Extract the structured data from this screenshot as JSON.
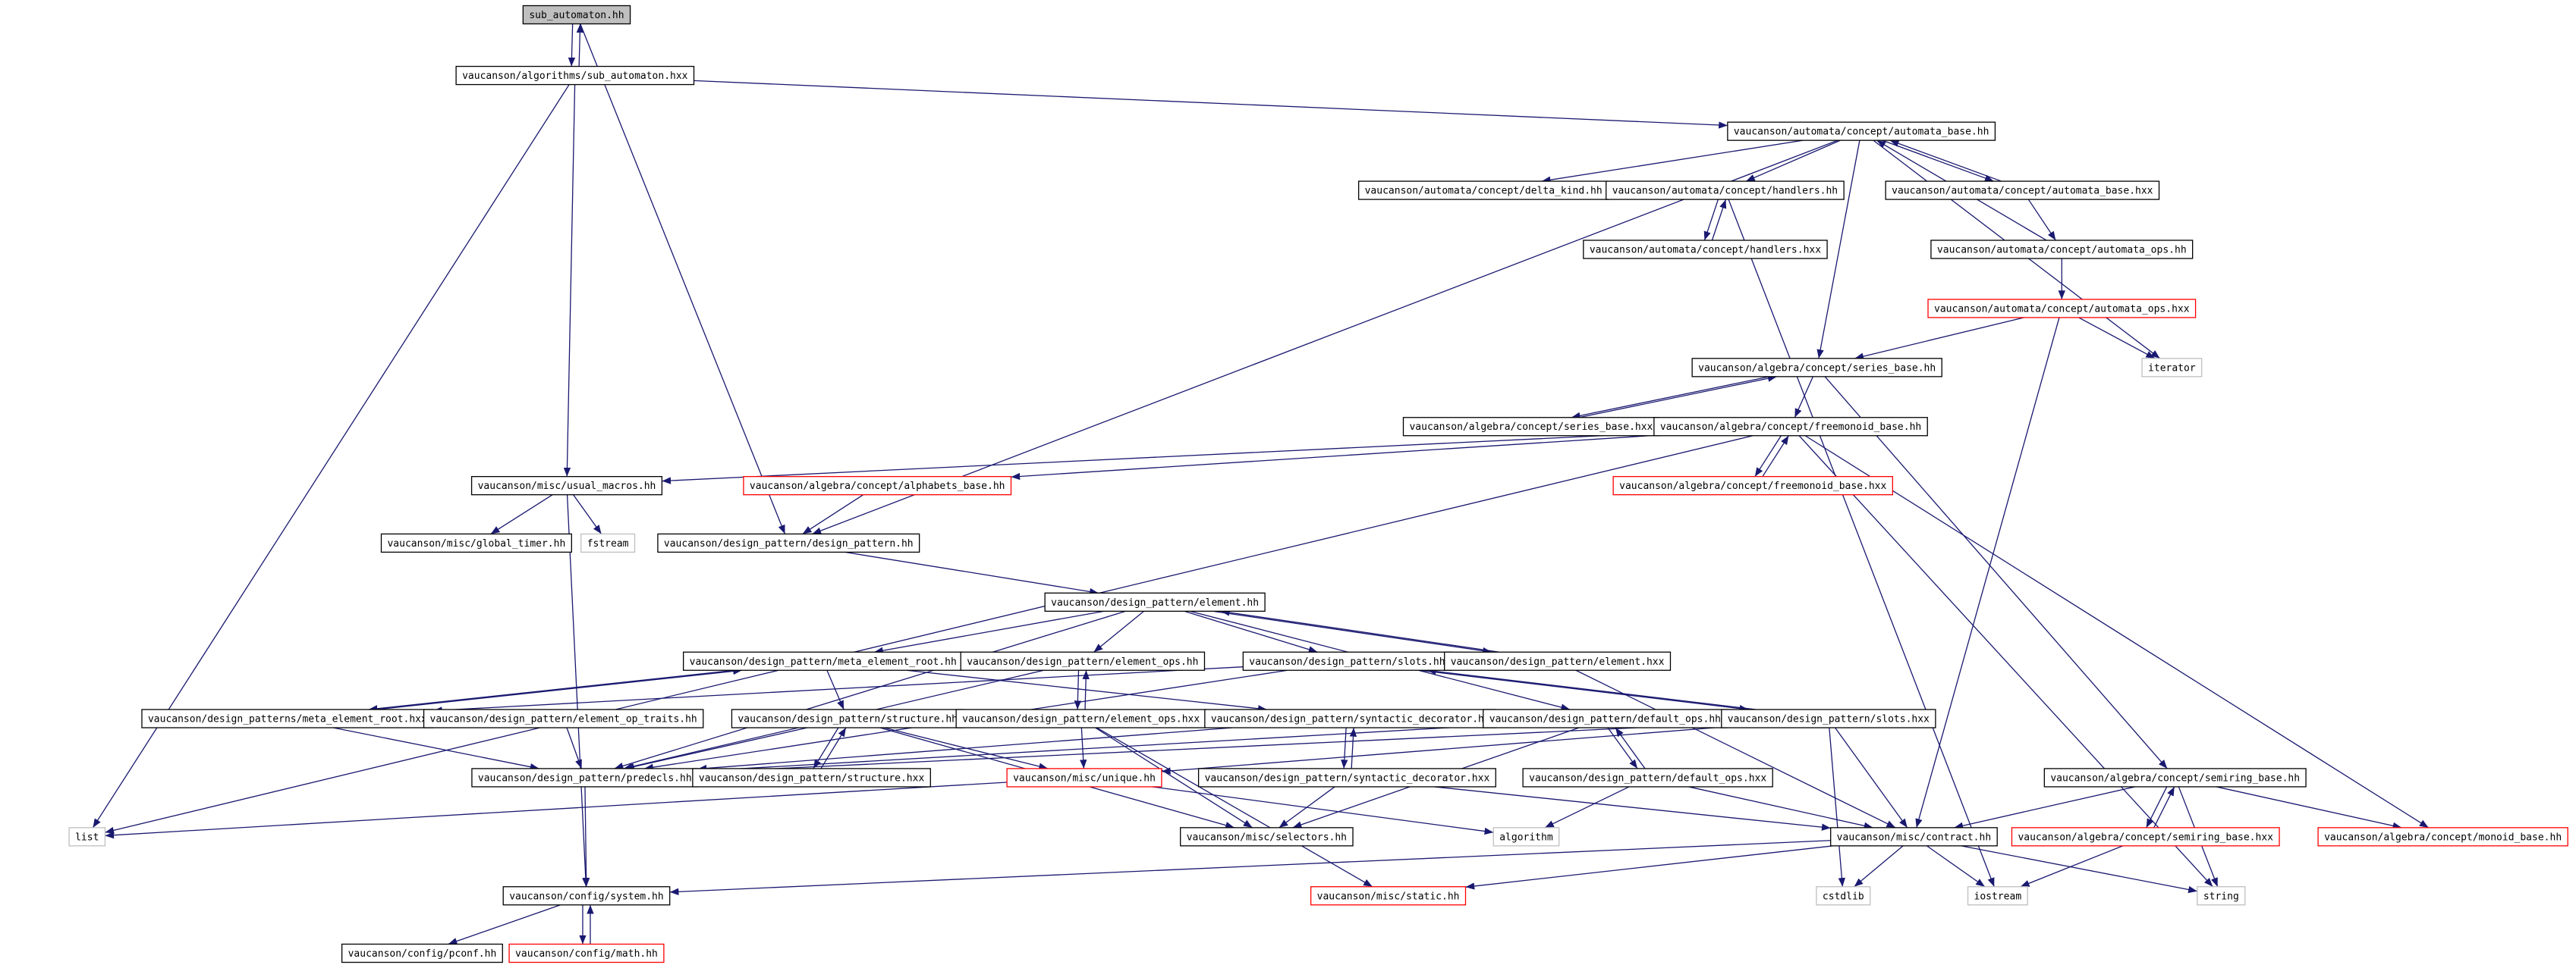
{
  "nodes": [
    {
      "label": "sub_automaton.hh"
    },
    {
      "label": "vaucanson/algorithms/sub_automaton.hxx"
    },
    {
      "label": "vaucanson/automata/concept/automata_base.hh"
    },
    {
      "label": "vaucanson/automata/concept/delta_kind.hh"
    },
    {
      "label": "vaucanson/automata/concept/handlers.hh"
    },
    {
      "label": "vaucanson/automata/concept/automata_base.hxx"
    },
    {
      "label": "vaucanson/automata/concept/handlers.hxx"
    },
    {
      "label": "vaucanson/automata/concept/automata_ops.hh"
    },
    {
      "label": "vaucanson/automata/concept/automata_ops.hxx"
    },
    {
      "label": "vaucanson/algebra/concept/series_base.hh"
    },
    {
      "label": "iterator"
    },
    {
      "label": "vaucanson/algebra/concept/series_base.hxx"
    },
    {
      "label": "vaucanson/algebra/concept/freemonoid_base.hh"
    },
    {
      "label": "vaucanson/misc/usual_macros.hh"
    },
    {
      "label": "vaucanson/algebra/concept/alphabets_base.hh"
    },
    {
      "label": "vaucanson/algebra/concept/freemonoid_base.hxx"
    },
    {
      "label": "vaucanson/misc/global_timer.hh"
    },
    {
      "label": "fstream"
    },
    {
      "label": "vaucanson/design_pattern/design_pattern.hh"
    },
    {
      "label": "vaucanson/design_pattern/element.hh"
    },
    {
      "label": "vaucanson/design_pattern/meta_element_root.hh"
    },
    {
      "label": "vaucanson/design_pattern/element_ops.hh"
    },
    {
      "label": "vaucanson/design_pattern/slots.hh"
    },
    {
      "label": "vaucanson/design_pattern/element.hxx"
    },
    {
      "label": "vaucanson/design_patterns/meta_element_root.hxx"
    },
    {
      "label": "vaucanson/design_pattern/element_op_traits.hh"
    },
    {
      "label": "vaucanson/design_pattern/structure.hh"
    },
    {
      "label": "vaucanson/design_pattern/element_ops.hxx"
    },
    {
      "label": "vaucanson/design_pattern/syntactic_decorator.hh"
    },
    {
      "label": "vaucanson/design_pattern/default_ops.hh"
    },
    {
      "label": "vaucanson/design_pattern/slots.hxx"
    },
    {
      "label": "vaucanson/design_pattern/predecls.hh"
    },
    {
      "label": "vaucanson/design_pattern/structure.hxx"
    },
    {
      "label": "vaucanson/misc/unique.hh"
    },
    {
      "label": "vaucanson/design_pattern/syntactic_decorator.hxx"
    },
    {
      "label": "vaucanson/design_pattern/default_ops.hxx"
    },
    {
      "label": "vaucanson/algebra/concept/semiring_base.hh"
    },
    {
      "label": "list"
    },
    {
      "label": "vaucanson/misc/selectors.hh"
    },
    {
      "label": "algorithm"
    },
    {
      "label": "vaucanson/misc/contract.hh"
    },
    {
      "label": "vaucanson/algebra/concept/semiring_base.hxx"
    },
    {
      "label": "vaucanson/algebra/concept/monoid_base.hh"
    },
    {
      "label": "vaucanson/config/system.hh"
    },
    {
      "label": "vaucanson/misc/static.hh"
    },
    {
      "label": "cstdlib"
    },
    {
      "label": "iostream"
    },
    {
      "label": "string"
    },
    {
      "label": "vaucanson/config/pconf.hh"
    },
    {
      "label": "vaucanson/config/math.hh"
    }
  ]
}
